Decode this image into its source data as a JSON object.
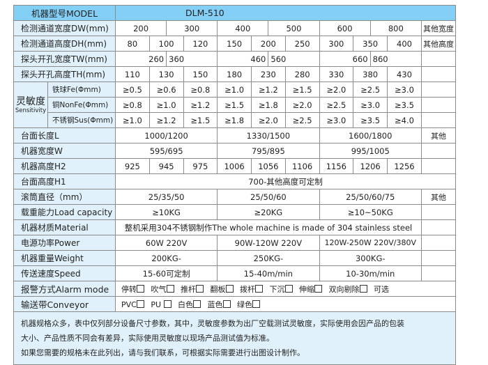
{
  "header": {
    "label": "机器型号MODEL",
    "model": "DLM-510"
  },
  "dw": {
    "label": "检测通道宽度DW(mm)",
    "values": [
      "200",
      "300",
      "400",
      "500",
      "600",
      "800"
    ],
    "other": "其他宽度"
  },
  "dh": {
    "label": "检测通道高度DH(mm)",
    "values": [
      "80",
      "100",
      "120",
      "150",
      "200",
      "250",
      "300",
      "350",
      "400"
    ],
    "other": "其他高度"
  },
  "tw": {
    "label": "探头开孔宽度TW(mm)",
    "values": [
      "260",
      "360",
      "460",
      "560",
      "660",
      "860"
    ]
  },
  "th": {
    "label": "探头开孔高度TH(mm)",
    "values": [
      "110",
      "130",
      "150",
      "180",
      "230",
      "280",
      "330",
      "380",
      "430"
    ]
  },
  "sensitivity": {
    "label": "灵敏度",
    "label_en": "Sensitivity",
    "fe": {
      "label": "铁球Fe(Φmm)",
      "values": [
        "≥0.5",
        "≥0.6",
        "≥0.8",
        "≥1.0",
        "≥1.2",
        "≥1.5",
        "≥2.0",
        "≥2.5",
        "≥3.0"
      ]
    },
    "nonfe": {
      "label": "铜NonFe(Φmm)",
      "values": [
        "≥0.8",
        "≥1.0",
        "≥1.2",
        "≥1.5",
        "≥1.8",
        "≥2.0",
        "≥2.5",
        "≥3.0",
        "≥3.5"
      ]
    },
    "sus": {
      "label": "不锈钢Sus(Φmm)",
      "values": [
        "≥1.0",
        "≥1.2",
        "≥1.5",
        "≥1.8",
        "≥2.0",
        "≥2.5",
        "≥3.0",
        "≥3.5",
        "≥4.0"
      ]
    }
  },
  "length": {
    "label": "台面长度L",
    "values": [
      "1000/1200",
      "1330/1500",
      "1600/1800"
    ],
    "other": "其他"
  },
  "width": {
    "label": "机器宽度W",
    "values": [
      "595/695",
      "795/895",
      "995/1005"
    ]
  },
  "h2": {
    "label": "机器高度H2",
    "values": [
      "925",
      "945",
      "975",
      "1006",
      "1056",
      "1106",
      "1156",
      "1206",
      "1256"
    ]
  },
  "h1": {
    "label": "台面高度H1",
    "value": "700-其他高度可定制"
  },
  "roller": {
    "label": "滚筒直径（mm）",
    "values": [
      "25/35/50",
      "25/50/60",
      "25/50/60/75"
    ],
    "other": "其他"
  },
  "load": {
    "label": "载重能力Load capacity",
    "values": [
      "≥10KG",
      "≥20KG",
      "≥10~50KG"
    ]
  },
  "material": {
    "label": "机器材质Material",
    "value": "整机采用304不锈钢制作The whole machine is made of 304 stainless steel"
  },
  "power": {
    "label": "电源功率Power",
    "values": [
      "60W 220V",
      "90W-120W 220V",
      "120W-250W  220V/380V"
    ]
  },
  "weight": {
    "label": "机器重量Weight",
    "values": [
      "200KG-",
      "250KG-",
      "300KG-"
    ]
  },
  "speed": {
    "label": "传送速度Speed",
    "values": [
      "15-60可定制",
      "15-40m/min",
      "10-30m/min"
    ]
  },
  "alarm": {
    "label": "报警方式Alarm mode",
    "options": [
      "停转",
      "吹气",
      "推杆",
      "翻板",
      "拨杆",
      "下沉",
      "伸缩",
      "双向剔除"
    ],
    "tail": "可选"
  },
  "conveyor": {
    "label": "输送带Conveyor",
    "options": [
      "PVC",
      "PU",
      "白色",
      "蓝色",
      "绿色"
    ]
  },
  "notes": [
    "机器规格众多，表中仅列部分设备尺寸参数，其中，灵敏度参数为出厂空载测试灵敏度，实际使用会因产品的包装",
    "大小、产品性质不同会有差异，实际使用灵敏度以现场产品测试值为标准。",
    "如果您需要的规格未在此列出，请与我们联系，可根据实际需要进行出图设计制作。"
  ],
  "colors": {
    "header": "#84cff5",
    "label_bg": "#e1f1fb",
    "border": "#8a8a8a"
  }
}
